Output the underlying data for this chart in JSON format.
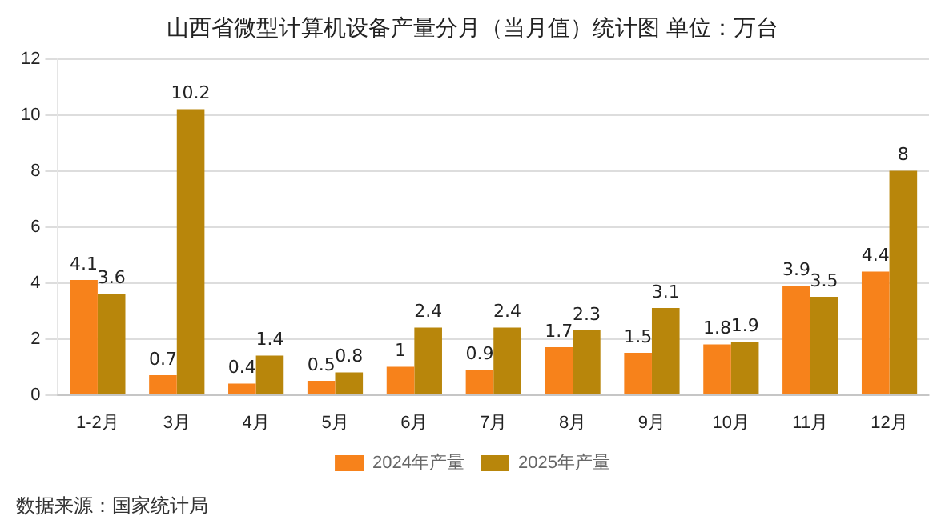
{
  "chart_data": {
    "type": "bar",
    "title": "山西省微型计算机设备产量分月（当月值）统计图 单位：万台",
    "categories": [
      "1-2月",
      "3月",
      "4月",
      "5月",
      "6月",
      "7月",
      "8月",
      "9月",
      "10月",
      "11月",
      "12月"
    ],
    "series": [
      {
        "name": "2024年产量",
        "color": "#f7821b",
        "values": [
          4.1,
          0.7,
          0.4,
          0.5,
          1,
          0.9,
          1.7,
          1.5,
          1.8,
          3.9,
          4.4
        ]
      },
      {
        "name": "2025年产量",
        "color": "#b8860b",
        "values": [
          3.6,
          10.2,
          1.4,
          0.8,
          2.4,
          2.4,
          2.3,
          3.1,
          1.9,
          3.5,
          8
        ]
      }
    ],
    "ylim": [
      0,
      12
    ],
    "yticks": [
      0,
      2,
      4,
      6,
      8,
      10,
      12
    ],
    "grid": "y",
    "legend": "bottom",
    "data_labels": true,
    "annotations": [
      "数据来源：国家统计局"
    ]
  }
}
